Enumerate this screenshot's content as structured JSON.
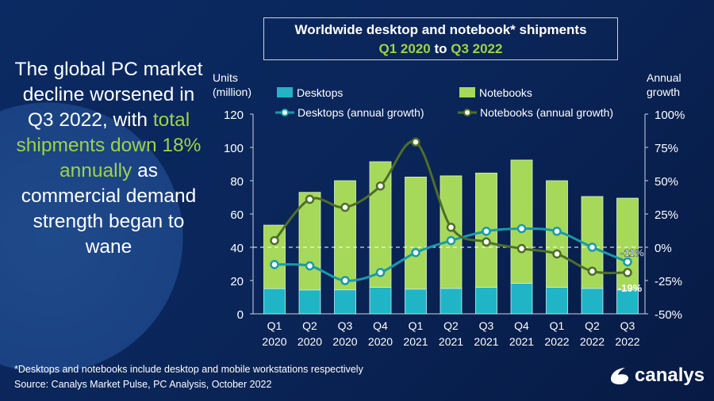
{
  "title": {
    "line1": "Worldwide desktop and notebook* shipments",
    "line2_a": "Q1 2020",
    "line2_b": " to ",
    "line2_c": "Q3 2022"
  },
  "headline": {
    "p1": "The global PC market decline worsened in Q3 2022, with ",
    "p2": "total shipments down 18% annually",
    "p3": " as commercial demand strength began to wane"
  },
  "footer": {
    "note": "*Desktops and notebooks include desktop and mobile workstations respectively",
    "source": "Source: Canalys Market Pulse, PC Analysis, October 2022"
  },
  "logo": {
    "text": "canalys"
  },
  "colors": {
    "desktops": "#1fb5c6",
    "notebooks": "#a6d85a",
    "desktop_growth": "#1a9aa8",
    "notebook_growth": "#4e6e28"
  },
  "chart_data": {
    "type": "bar",
    "title": "Worldwide desktop and notebook* shipments Q1 2020 to Q3 2022",
    "ylabel_left": "Units (million)",
    "ylabel_left_1": "Units",
    "ylabel_left_2": "(million)",
    "ylabel_right_1": "Annual",
    "ylabel_right_2": "growth",
    "ylim": [
      0,
      120
    ],
    "y2lim": [
      -50,
      100
    ],
    "yticks": [
      "0",
      "20",
      "40",
      "60",
      "80",
      "100",
      "120"
    ],
    "y2ticks": [
      "-50%",
      "-25%",
      "0%",
      "25%",
      "50%",
      "75%",
      "100%"
    ],
    "categories": [
      [
        "Q1",
        "2020"
      ],
      [
        "Q2",
        "2020"
      ],
      [
        "Q3",
        "2020"
      ],
      [
        "Q4",
        "2020"
      ],
      [
        "Q1",
        "2021"
      ],
      [
        "Q2",
        "2021"
      ],
      [
        "Q3",
        "2021"
      ],
      [
        "Q4",
        "2021"
      ],
      [
        "Q1",
        "2022"
      ],
      [
        "Q2",
        "2022"
      ],
      [
        "Q3",
        "2022"
      ]
    ],
    "series": [
      {
        "name": "Desktops",
        "type": "stacked-bar",
        "values": [
          15.1,
          14.3,
          14.4,
          15.9,
          14.8,
          15.2,
          15.9,
          18.3,
          15.9,
          15.2,
          14.3
        ]
      },
      {
        "name": "Notebooks",
        "type": "stacked-bar",
        "values": [
          38.2,
          58.7,
          65.6,
          75.5,
          67.4,
          67.7,
          68.7,
          74.1,
          64.1,
          55.3,
          55.2
        ]
      },
      {
        "name": "Desktops (annual growth)",
        "type": "line",
        "axis": "right",
        "values": [
          -13,
          -14,
          -25,
          -19,
          -4,
          5,
          12,
          14,
          12,
          0,
          -11
        ]
      },
      {
        "name": "Notebooks (annual growth)",
        "type": "line",
        "axis": "right",
        "values": [
          5,
          36,
          30,
          46,
          79,
          15,
          4,
          -1,
          -5,
          -18,
          -19
        ]
      }
    ],
    "annotations": [
      "-11%",
      "-19%"
    ],
    "legend": "top"
  }
}
